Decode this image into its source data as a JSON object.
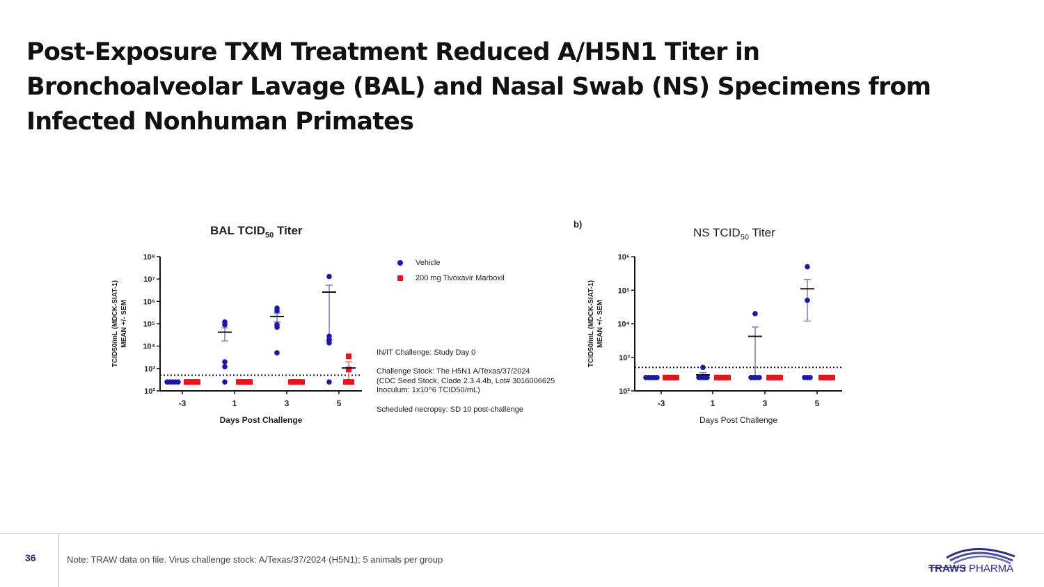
{
  "title": "Post-Exposure TXM Treatment Reduced A/H5N1 Titer in Bronchoalveolar Lavage (BAL) and Nasal Swab (NS) Specimens from Infected Nonhuman Primates",
  "panel_label": "b)",
  "legend": {
    "vehicle": "Vehicle",
    "treated": "200 mg Tivoxavir Marboxil"
  },
  "study_notes": {
    "challenge": "IN/IT Challenge: Study Day 0",
    "stock_line1": "Challenge Stock: The H5N1 A/Texas/37/2024",
    "stock_line2": "(CDC Seed Stock, Clade 2.3.4.4b, Lot# 3016006625",
    "stock_line3": "Inoculum: 1x10^6 TCID50/mL)",
    "necropsy": "Scheduled necropsy: SD 10 post-challenge"
  },
  "footer": {
    "page": "36",
    "note": "Note: TRAW data on file. Virus challenge stock: A/Texas/37/2024 (H5N1); 5 animals per group",
    "logo_text": "TRAWS PHARMA"
  },
  "colors": {
    "vehicle": "#1a1aa6",
    "treated": "#e8141c",
    "sem": "#7b7bc4",
    "brand": "#2e2e7a"
  },
  "chart_data": [
    {
      "type": "scatter",
      "title": "BAL TCID50 Titer",
      "xlabel": "Days Post Challenge",
      "ylabel": "TCID50/mL (MDCK-SIAT-1) MEAN +/- SEM",
      "yscale": "log",
      "ylim": [
        100,
        100000000
      ],
      "yticks": [
        "10²",
        "10³",
        "10⁴",
        "10⁵",
        "10⁶",
        "10⁷",
        "10⁸"
      ],
      "categories": [
        "-3",
        "1",
        "3",
        "5"
      ],
      "lod": 500,
      "series": [
        {
          "name": "Vehicle",
          "points": [
            [
              250,
              250,
              250,
              250,
              250
            ],
            [
              120000,
              90000,
              2000,
              1200,
              250
            ],
            [
              500000,
              380000,
              90000,
              70000,
              5000
            ],
            [
              13000000,
              28000,
              20000,
              14000,
              250
            ]
          ],
          "mean": [
            250,
            42000,
            210000,
            2600000
          ],
          "sem_low": [
            250,
            17000,
            120000,
            18000
          ],
          "sem_high": [
            250,
            65000,
            300000,
            5300000
          ]
        },
        {
          "name": "200 mg Tivoxavir Marboxil",
          "points": [
            [
              250,
              250,
              250,
              250,
              250
            ],
            [
              250,
              250,
              250,
              250,
              250
            ],
            [
              250,
              250,
              250,
              250,
              250
            ],
            [
              3500,
              900,
              250,
              250,
              250
            ]
          ],
          "mean": [
            250,
            250,
            250,
            1050
          ],
          "sem_low": [
            250,
            250,
            250,
            250
          ],
          "sem_high": [
            250,
            250,
            250,
            2000
          ]
        }
      ]
    },
    {
      "type": "scatter",
      "title": "NS TCID50 Titer",
      "xlabel": "Days Post Challenge",
      "ylabel": "TCID50/mL (MDCK-SIAT-1) MEAN +/- SEM",
      "yscale": "log",
      "ylim": [
        100,
        1000000
      ],
      "yticks": [
        "10²",
        "10³",
        "10⁴",
        "10⁵",
        "10⁶"
      ],
      "categories": [
        "-3",
        "1",
        "3",
        "5"
      ],
      "lod": 500,
      "series": [
        {
          "name": "Vehicle",
          "points": [
            [
              250,
              250,
              250,
              250,
              250
            ],
            [
              500,
              250,
              250,
              250,
              250
            ],
            [
              20000,
              250,
              250,
              250,
              250
            ],
            [
              500000,
              50000,
              250,
              250,
              250
            ]
          ],
          "mean": [
            250,
            300,
            4200,
            110000
          ],
          "sem_low": [
            250,
            250,
            250,
            12000
          ],
          "sem_high": [
            250,
            350,
            8000,
            210000
          ]
        },
        {
          "name": "200 mg Tivoxavir Marboxil",
          "points": [
            [
              250,
              250,
              250,
              250,
              250
            ],
            [
              250,
              250,
              250,
              250,
              250
            ],
            [
              250,
              250,
              250,
              250,
              250
            ],
            [
              250,
              250,
              250,
              250,
              250
            ]
          ],
          "mean": [
            250,
            250,
            250,
            250
          ],
          "sem_low": [
            250,
            250,
            250,
            250
          ],
          "sem_high": [
            250,
            250,
            250,
            250
          ]
        }
      ]
    }
  ]
}
